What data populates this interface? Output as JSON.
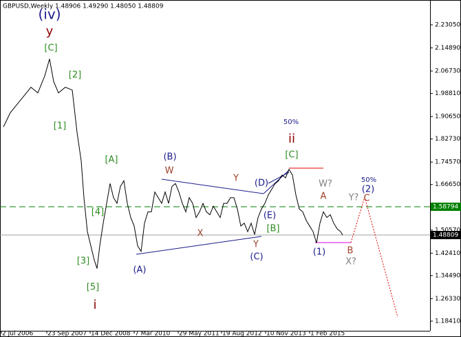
{
  "chart_data": {
    "type": "line",
    "title": "GBPUSD,Weekly  1.48906 1.49290 1.48050 1.48809",
    "color": "#000000",
    "x": [
      5,
      15,
      25,
      35,
      45,
      55,
      65,
      72,
      78,
      85,
      95,
      105,
      112,
      118,
      122,
      127,
      132,
      137,
      141,
      145,
      150,
      155,
      160,
      165,
      170,
      175,
      180,
      185,
      190,
      195,
      200,
      205,
      210,
      215,
      220,
      225,
      230,
      235,
      240,
      245,
      250,
      255,
      260,
      265,
      270,
      275,
      280,
      285,
      290,
      295,
      300,
      305,
      310,
      315,
      320,
      325,
      330,
      335,
      340,
      345,
      350,
      355,
      360,
      365,
      370,
      375,
      380,
      385,
      390,
      395,
      400,
      405,
      410,
      415,
      420,
      425,
      430,
      435,
      440,
      445,
      450,
      455,
      460,
      465,
      470,
      475,
      480,
      485,
      490,
      495,
      498
    ],
    "values": [
      1.87,
      1.92,
      1.95,
      1.98,
      2.01,
      1.99,
      2.05,
      2.11,
      2.03,
      1.99,
      2.01,
      2.0,
      1.85,
      1.75,
      1.62,
      1.5,
      1.45,
      1.4,
      1.37,
      1.45,
      1.53,
      1.6,
      1.67,
      1.62,
      1.6,
      1.66,
      1.68,
      1.6,
      1.55,
      1.52,
      1.45,
      1.43,
      1.53,
      1.57,
      1.57,
      1.64,
      1.62,
      1.6,
      1.64,
      1.6,
      1.66,
      1.67,
      1.64,
      1.6,
      1.57,
      1.62,
      1.6,
      1.55,
      1.57,
      1.6,
      1.57,
      1.56,
      1.59,
      1.57,
      1.55,
      1.6,
      1.6,
      1.62,
      1.62,
      1.58,
      1.52,
      1.53,
      1.5,
      1.53,
      1.49,
      1.55,
      1.58,
      1.6,
      1.63,
      1.65,
      1.67,
      1.68,
      1.7,
      1.69,
      1.72,
      1.7,
      1.63,
      1.58,
      1.57,
      1.54,
      1.52,
      1.5,
      1.46,
      1.53,
      1.57,
      1.55,
      1.56,
      1.53,
      1.51,
      1.5,
      1.48809
    ],
    "xlim": [
      0,
      625
    ],
    "ylim": [
      1.15,
      2.318
    ],
    "xticks": [
      {
        "value": 2,
        "label": "2 Jul 2006"
      },
      {
        "value": 68,
        "label": "23 Sep 2007"
      },
      {
        "value": 131,
        "label": "14 Dec 2008"
      },
      {
        "value": 195,
        "label": "7 Mar 2010"
      },
      {
        "value": 259,
        "label": "29 May 2011"
      },
      {
        "value": 322,
        "label": "19 Aug 2012"
      },
      {
        "value": 386,
        "label": "10 Nov 2013"
      },
      {
        "value": 450,
        "label": "1 Feb 2015"
      }
    ],
    "yticks": [
      {
        "value": 2.2305,
        "label": "2.23050"
      },
      {
        "value": 2.1489,
        "label": "2.14890"
      },
      {
        "value": 2.0673,
        "label": "2.06730"
      },
      {
        "value": 1.9881,
        "label": "1.98810"
      },
      {
        "value": 1.9065,
        "label": "1.90650"
      },
      {
        "value": 1.8273,
        "label": "1.82730"
      },
      {
        "value": 1.7457,
        "label": "1.74570"
      },
      {
        "value": 1.6665,
        "label": "1.66650"
      },
      {
        "value": 1.5057,
        "label": "1.50570"
      },
      {
        "value": 1.4241,
        "label": "1.42410"
      },
      {
        "value": 1.3449,
        "label": "1.34490"
      },
      {
        "value": 1.2633,
        "label": "1.26330"
      },
      {
        "value": 1.1841,
        "label": "1.18410"
      }
    ],
    "levels": [
      {
        "value": 1.58794,
        "label": "1.58794",
        "color": "#008000"
      },
      {
        "value": 1.48809,
        "label": "1.48809",
        "color": "#000000"
      }
    ],
    "annotations": [
      {
        "text": "(iv)",
        "color": "#1a1a8c"
      },
      {
        "text": "y",
        "color": "#8b0000"
      },
      {
        "text": "[C]",
        "color": "#2e8b22"
      },
      {
        "text": "[2]",
        "color": "#2e8b22"
      },
      {
        "text": "[1]",
        "color": "#2e8b22"
      },
      {
        "text": "[A]",
        "color": "#2e8b22"
      },
      {
        "text": "[4]",
        "color": "#2e8b22"
      },
      {
        "text": "[3]",
        "color": "#2e8b22"
      },
      {
        "text": "[5]",
        "color": "#2e8b22"
      },
      {
        "text": "i",
        "color": "#8b0000"
      },
      {
        "text": "(B)",
        "color": "#1a1a8c"
      },
      {
        "text": "W",
        "color": "#a0402a"
      },
      {
        "text": "X",
        "color": "#a0402a"
      },
      {
        "text": "Y",
        "color": "#a0402a"
      },
      {
        "text": "Y",
        "color": "#a0402a"
      },
      {
        "text": "(C)",
        "color": "#1a1a8c"
      },
      {
        "text": "(A)",
        "color": "#1a1a8c"
      },
      {
        "text": "(D)",
        "color": "#1a1a8c"
      },
      {
        "text": "(E)",
        "color": "#1a1a8c"
      },
      {
        "text": "[B]",
        "color": "#2e8b22"
      },
      {
        "text": "50%",
        "color": "#1a1a8c"
      },
      {
        "text": "ii",
        "color": "#8b0000"
      },
      {
        "text": "[C]",
        "color": "#2e8b22"
      },
      {
        "text": "W?",
        "color": "#808080"
      },
      {
        "text": "A",
        "color": "#a0402a"
      },
      {
        "text": "(1)",
        "color": "#1a1a8c"
      },
      {
        "text": "B",
        "color": "#a0402a"
      },
      {
        "text": "X?",
        "color": "#808080"
      },
      {
        "text": "50%",
        "color": "#1a1a8c"
      },
      {
        "text": "(2)",
        "color": "#1a1a8c"
      },
      {
        "text": "Y?",
        "color": "#808080"
      },
      {
        "text": "C",
        "color": "#a0402a"
      }
    ]
  }
}
